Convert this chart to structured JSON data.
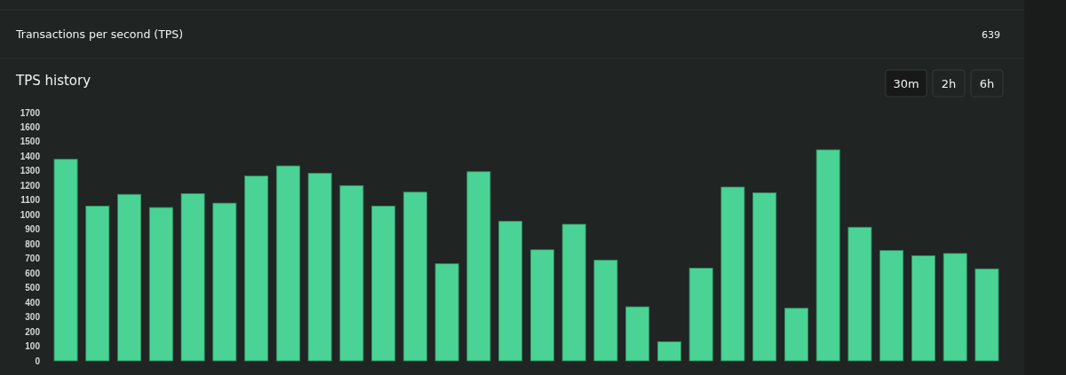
{
  "chart_data": {
    "type": "bar",
    "title": "TPS history",
    "annotations": [
      "Transactions per second (TPS)",
      "639",
      "30m",
      "2h",
      "6h"
    ],
    "categories": [
      null,
      null,
      null,
      null,
      null,
      null,
      null,
      null,
      null,
      null,
      null,
      null,
      null,
      null,
      null,
      null,
      null,
      null,
      null,
      null,
      null,
      null,
      null,
      null,
      null,
      null,
      null,
      null,
      null,
      null
    ],
    "values": [
      1380,
      1060,
      1140,
      1050,
      1145,
      1080,
      1265,
      1335,
      1285,
      1200,
      1060,
      1155,
      665,
      1295,
      955,
      760,
      935,
      690,
      370,
      130,
      635,
      1190,
      1150,
      360,
      1445,
      915,
      755,
      720,
      735,
      630
    ],
    "color": "#4ad395",
    "ylim": [
      0,
      1700
    ],
    "yticks": [
      0,
      100,
      200,
      300,
      400,
      500,
      600,
      700,
      800,
      900,
      1000,
      1100,
      1200,
      1300,
      1400,
      1500,
      1600,
      1700
    ]
  }
}
